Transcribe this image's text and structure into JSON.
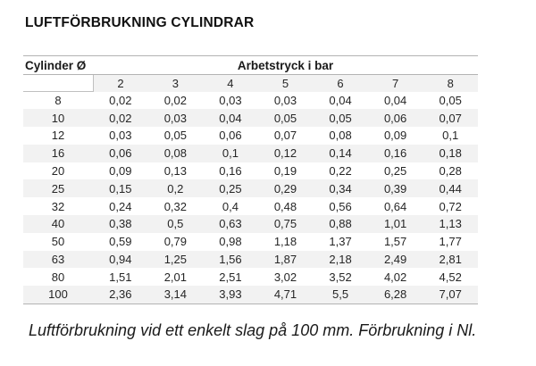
{
  "title": "LUFTFÖRBRUKNING CYLINDRAR",
  "table": {
    "corner_header": "Cylinder Ø",
    "group_header": "Arbetstryck i bar",
    "pressures": [
      "2",
      "3",
      "4",
      "5",
      "6",
      "7",
      "8"
    ],
    "rows": [
      {
        "diameter": "8",
        "values": [
          "0,02",
          "0,02",
          "0,03",
          "0,03",
          "0,04",
          "0,04",
          "0,05"
        ]
      },
      {
        "diameter": "10",
        "values": [
          "0,02",
          "0,03",
          "0,04",
          "0,05",
          "0,05",
          "0,06",
          "0,07"
        ]
      },
      {
        "diameter": "12",
        "values": [
          "0,03",
          "0,05",
          "0,06",
          "0,07",
          "0,08",
          "0,09",
          "0,1"
        ]
      },
      {
        "diameter": "16",
        "values": [
          "0,06",
          "0,08",
          "0,1",
          "0,12",
          "0,14",
          "0,16",
          "0,18"
        ]
      },
      {
        "diameter": "20",
        "values": [
          "0,09",
          "0,13",
          "0,16",
          "0,19",
          "0,22",
          "0,25",
          "0,28"
        ]
      },
      {
        "diameter": "25",
        "values": [
          "0,15",
          "0,2",
          "0,25",
          "0,29",
          "0,34",
          "0,39",
          "0,44"
        ]
      },
      {
        "diameter": "32",
        "values": [
          "0,24",
          "0,32",
          "0,4",
          "0,48",
          "0,56",
          "0,64",
          "0,72"
        ]
      },
      {
        "diameter": "40",
        "values": [
          "0,38",
          "0,5",
          "0,63",
          "0,75",
          "0,88",
          "1,01",
          "1,13"
        ]
      },
      {
        "diameter": "50",
        "values": [
          "0,59",
          "0,79",
          "0,98",
          "1,18",
          "1,37",
          "1,57",
          "1,77"
        ]
      },
      {
        "diameter": "63",
        "values": [
          "0,94",
          "1,25",
          "1,56",
          "1,87",
          "2,18",
          "2,49",
          "2,81"
        ]
      },
      {
        "diameter": "80",
        "values": [
          "1,51",
          "2,01",
          "2,51",
          "3,02",
          "3,52",
          "4,02",
          "4,52"
        ]
      },
      {
        "diameter": "100",
        "values": [
          "2,36",
          "3,14",
          "3,93",
          "4,71",
          "5,5",
          "6,28",
          "7,07"
        ]
      }
    ]
  },
  "caption": "Luftförbrukning vid ett enkelt slag på 100 mm. Förbrukning i Nl.",
  "colors": {
    "stripe": "#f2f2f2",
    "border": "#b3b3b3",
    "text": "#262626"
  }
}
